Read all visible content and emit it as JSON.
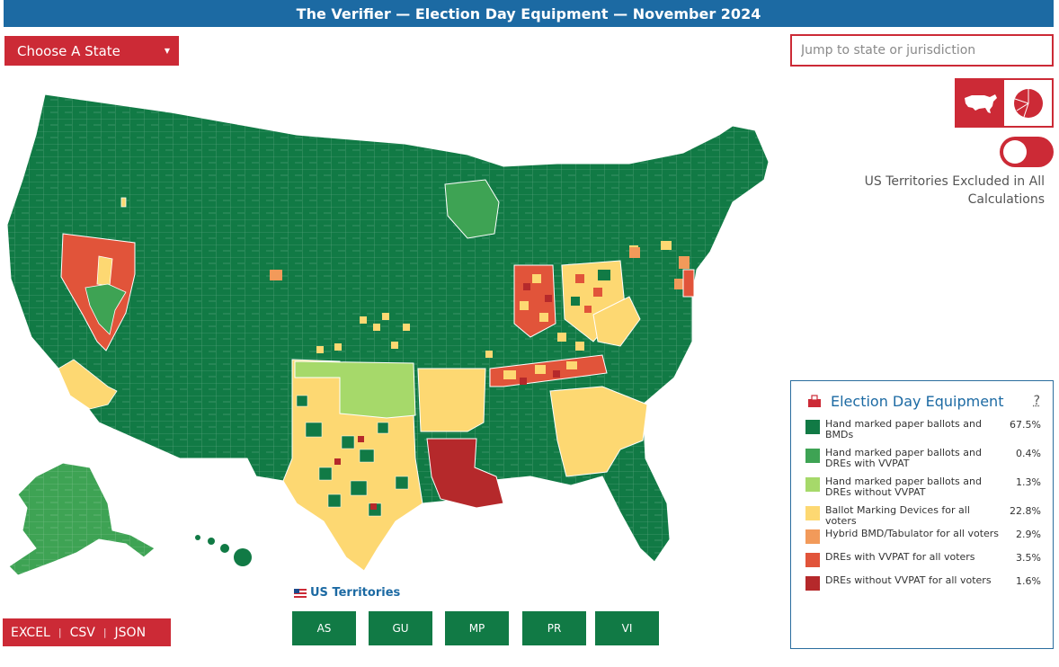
{
  "header": {
    "title": "The Verifier — Election Day Equipment — November 2024"
  },
  "state_select": {
    "label": "Choose A State"
  },
  "search": {
    "placeholder": "Jump to state or jurisdiction"
  },
  "view_toggle": {
    "options": [
      "map-view",
      "pie-chart-view"
    ],
    "selected": "map-view"
  },
  "territory_toggle": {
    "on": false
  },
  "territories_note": "US Territories Excluded in All Calculations",
  "legend": {
    "title": "Election Day Equipment",
    "help": "?",
    "items": [
      {
        "label": "Hand marked paper ballots and BMDs",
        "pct": "67.5%",
        "color": "#117a45"
      },
      {
        "label": "Hand marked paper ballots and DREs with VVPAT",
        "pct": "0.4%",
        "color": "#3ea354"
      },
      {
        "label": "Hand marked paper ballots and DREs without VVPAT",
        "pct": "1.3%",
        "color": "#a6d96a"
      },
      {
        "label": "Ballot Marking Devices for all voters",
        "pct": "22.8%",
        "color": "#fdd872"
      },
      {
        "label": "Hybrid BMD/Tabulator for all voters",
        "pct": "2.9%",
        "color": "#f29a5a"
      },
      {
        "label": "DREs with VVPAT for all voters",
        "pct": "3.5%",
        "color": "#e1543a"
      },
      {
        "label": "DREs without VVPAT for all voters",
        "pct": "1.6%",
        "color": "#b5292b"
      }
    ]
  },
  "territories": {
    "label": "US Territories",
    "buttons": [
      "AS",
      "GU",
      "MP",
      "PR",
      "VI"
    ]
  },
  "downloads": {
    "excel": "EXCEL",
    "csv": "CSV",
    "json": "JSON"
  }
}
